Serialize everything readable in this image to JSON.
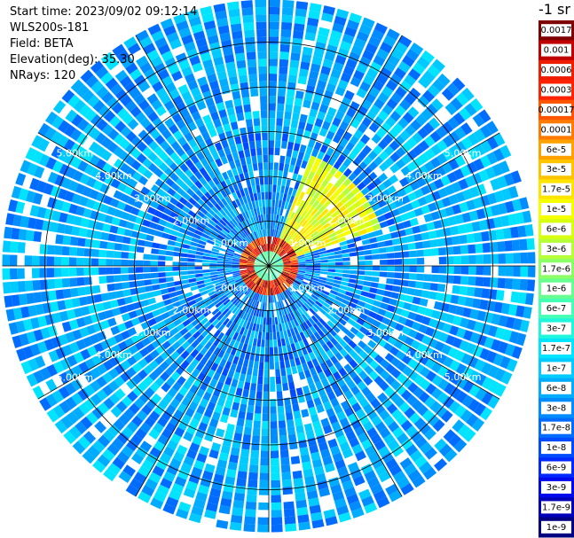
{
  "header": {
    "start_time": "Start time: 2023/09/02 09:12:14",
    "instrument": "WLS200s-181",
    "field": "Field: BETA",
    "elevation": "Elevation(deg): 35.30",
    "nrays": "NRays: 120"
  },
  "chart_data": {
    "type": "heatmap",
    "projection": "polar-ppi",
    "field": "BETA",
    "units": "-1 sr",
    "nrays": 120,
    "range_rings_km": [
      1,
      2,
      3,
      4,
      5
    ],
    "range_labels": [
      "1.00km",
      "2.00km",
      "3.00km",
      "4.00km",
      "5.00km"
    ],
    "max_range_km": 5.95,
    "log_scale": true,
    "colorbar": {
      "ticks": [
        "0.0017",
        "0.001",
        "0.0006",
        "0.0003",
        "0.00017",
        "0.0001",
        "6e-5",
        "3e-5",
        "1.7e-5",
        "1e-5",
        "6e-6",
        "3e-6",
        "1.7e-6",
        "1e-6",
        "6e-7",
        "3e-7",
        "1.7e-7",
        "1e-7",
        "6e-8",
        "3e-8",
        "1.7e-8",
        "1e-8",
        "6e-9",
        "3e-9",
        "1.7e-9",
        "1e-9"
      ],
      "colors": [
        "#800000",
        "#c00000",
        "#ee1c00",
        "#ff2200",
        "#ff5500",
        "#ff7a00",
        "#ffa200",
        "#ffc400",
        "#ffe400",
        "#f6ff00",
        "#d6ff12",
        "#b4ff38",
        "#8cff66",
        "#66ff90",
        "#44ffb4",
        "#20f6dc",
        "#00e4ff",
        "#00caff",
        "#00acff",
        "#008cff",
        "#006cff",
        "#004aff",
        "#0028ff",
        "#0008ee",
        "#0000b8",
        "#000080"
      ]
    },
    "features": {
      "high_backscatter_ring_km": 0.5,
      "background_level": "1.7e-8",
      "sector_with_aerosol_deg": [
        20,
        70
      ]
    }
  }
}
